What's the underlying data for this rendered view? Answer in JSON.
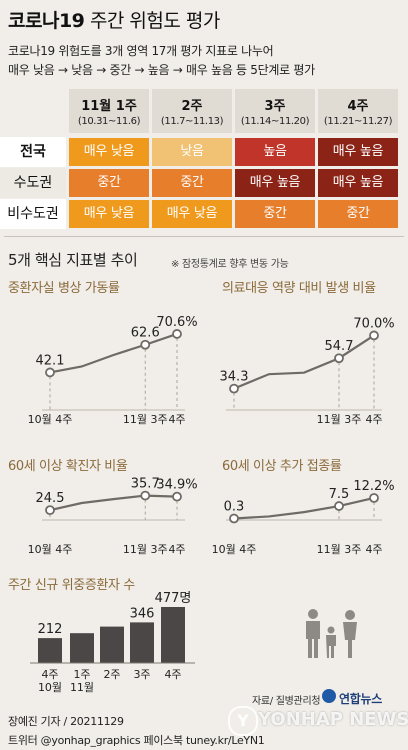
{
  "header": {
    "title_bold": "코로나19",
    "title_rest": "주간 위험도 평가",
    "line1": "코로나19 위험도를 3개 영역 17개 평가 지표로 나누어",
    "line2": "매우 낮음 → 낮음 → 중간 → 높음 → 매우 높음 등 5단계로 평가"
  },
  "risk_table": {
    "columns": [
      {
        "week": "11월 1주",
        "range": "(10.31~11.6)"
      },
      {
        "week": "2주",
        "range": "(11.7~11.13)"
      },
      {
        "week": "3주",
        "range": "(11.14~11.20)"
      },
      {
        "week": "4주",
        "range": "(11.21~11.27)"
      }
    ],
    "rows": [
      {
        "label": "전국",
        "cells": [
          "매우 낮음",
          "낮음",
          "높음",
          "매우 높음"
        ],
        "colors": [
          "#ef9a1c",
          "#f1c273",
          "#c0342a",
          "#8b2317"
        ]
      },
      {
        "label": "수도권",
        "cells": [
          "중간",
          "중간",
          "매우 높음",
          "매우 높음"
        ],
        "colors": [
          "#e77e2c",
          "#e77e2c",
          "#8b2317",
          "#8b2317"
        ]
      },
      {
        "label": "비수도권",
        "cells": [
          "매우 낮음",
          "매우 낮음",
          "중간",
          "중간"
        ],
        "colors": [
          "#ef9a1c",
          "#ef9a1c",
          "#e77e2c",
          "#e77e2c"
        ]
      }
    ]
  },
  "section": {
    "title": "5개 핵심 지표별 추이",
    "note": "※ 잠정통계로 향후 변동 가능"
  },
  "chart_data": [
    {
      "type": "line",
      "title": "중환자실 병상 가동률",
      "x": [
        "10월 4주",
        "",
        "",
        "11월 3주",
        "4주"
      ],
      "series": [
        {
          "values": [
            42.1,
            46.5,
            55.0,
            62.6,
            70.6
          ]
        }
      ],
      "data_labels": [
        "42.1",
        "",
        "",
        "62.6",
        "70.6%"
      ],
      "ylim": [
        35,
        75
      ]
    },
    {
      "type": "line",
      "title": "의료대응 역량 대비 발생 비율",
      "x": [
        "",
        "",
        "",
        "11월 3주",
        "4주"
      ],
      "series": [
        {
          "values": [
            34.3,
            44.0,
            45.0,
            54.7,
            70.0
          ]
        }
      ],
      "data_labels": [
        "34.3",
        "",
        "",
        "54.7",
        "70.0%"
      ],
      "ylim": [
        30,
        75
      ]
    },
    {
      "type": "line",
      "title": "60세 이상 확진자 비율",
      "x": [
        "10월 4주",
        "",
        "",
        "11월 3주",
        "4주"
      ],
      "series": [
        {
          "values": [
            24.5,
            30.0,
            33.0,
            35.7,
            34.9
          ]
        }
      ],
      "data_labels": [
        "24.5",
        "",
        "",
        "35.7",
        "34.9%"
      ],
      "ylim": [
        20,
        40
      ]
    },
    {
      "type": "line",
      "title": "60세 이상 추가 접종률",
      "x": [
        "10월 4주",
        "",
        "",
        "11월 3주",
        "4주"
      ],
      "series": [
        {
          "values": [
            0.3,
            1.5,
            4.0,
            7.5,
            12.2
          ]
        }
      ],
      "data_labels": [
        "0.3",
        "",
        "",
        "7.5",
        "12.2%"
      ],
      "ylim": [
        0,
        18
      ]
    },
    {
      "type": "bar",
      "title": "주간 신규 위중증환자 수",
      "categories": [
        "4주",
        "1주",
        "2주",
        "3주",
        "4주"
      ],
      "sub_categories": [
        "10월",
        "11월",
        "",
        "",
        ""
      ],
      "values": [
        212,
        254,
        310,
        346,
        477
      ],
      "data_labels": [
        "212",
        "",
        "",
        "346",
        "477명"
      ],
      "bar_color": "#4a4746"
    }
  ],
  "source": "자료/ 질병관리청",
  "footer": {
    "reporter": "장예진 기자 / 20211129",
    "sns": "트위터 @yonhap_graphics  페이스북 tuney.kr/LeYN1",
    "logo_text": "연합뉴스",
    "watermark": "YONHAP NEWS"
  }
}
